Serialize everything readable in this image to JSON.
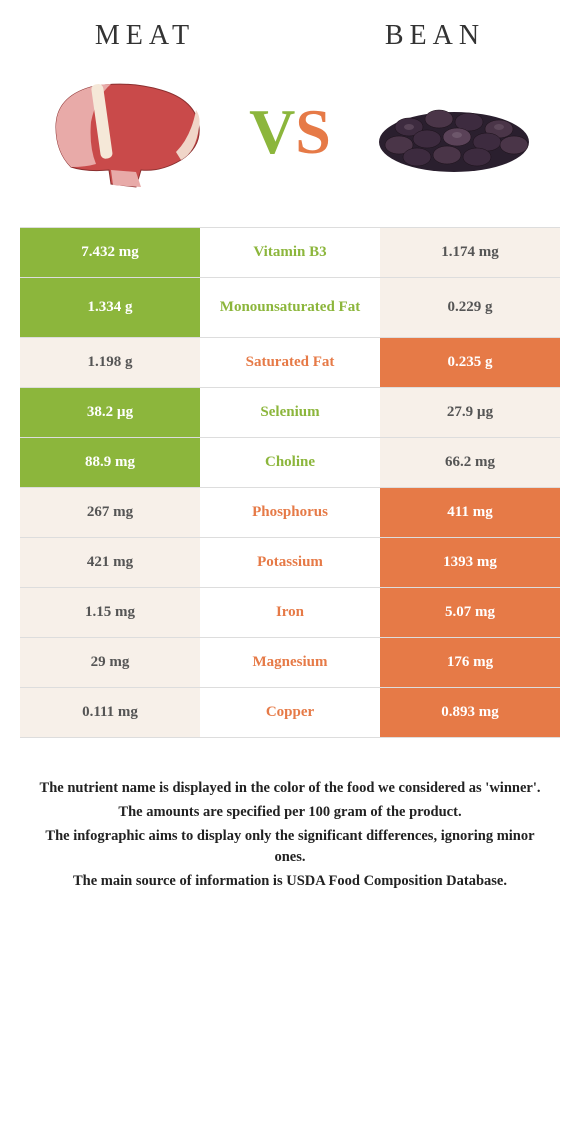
{
  "titles": {
    "left": "Meat",
    "right": "Bean"
  },
  "vs": {
    "v": "V",
    "s": "S"
  },
  "colors": {
    "green": "#8cb63c",
    "orange": "#e67a47",
    "lose_bg": "#f7f0e9"
  },
  "rows": [
    {
      "left": "7.432 mg",
      "nutrient": "Vitamin B3",
      "right": "1.174 mg",
      "winner": "left",
      "tall": false
    },
    {
      "left": "1.334 g",
      "nutrient": "Monounsaturated Fat",
      "right": "0.229 g",
      "winner": "left",
      "tall": true
    },
    {
      "left": "1.198 g",
      "nutrient": "Saturated Fat",
      "right": "0.235 g",
      "winner": "right",
      "tall": false
    },
    {
      "left": "38.2 µg",
      "nutrient": "Selenium",
      "right": "27.9 µg",
      "winner": "left",
      "tall": false
    },
    {
      "left": "88.9 mg",
      "nutrient": "Choline",
      "right": "66.2 mg",
      "winner": "left",
      "tall": false
    },
    {
      "left": "267 mg",
      "nutrient": "Phosphorus",
      "right": "411 mg",
      "winner": "right",
      "tall": false
    },
    {
      "left": "421 mg",
      "nutrient": "Potassium",
      "right": "1393 mg",
      "winner": "right",
      "tall": false
    },
    {
      "left": "1.15 mg",
      "nutrient": "Iron",
      "right": "5.07 mg",
      "winner": "right",
      "tall": false
    },
    {
      "left": "29 mg",
      "nutrient": "Magnesium",
      "right": "176 mg",
      "winner": "right",
      "tall": false
    },
    {
      "left": "0.111 mg",
      "nutrient": "Copper",
      "right": "0.893 mg",
      "winner": "right",
      "tall": false
    }
  ],
  "footer": [
    "The nutrient name is displayed in the color of the food we considered as 'winner'.",
    "The amounts are specified per 100 gram of the product.",
    "The infographic aims to display only the significant differences, ignoring minor ones.",
    "The main source of information is USDA Food Composition Database."
  ]
}
